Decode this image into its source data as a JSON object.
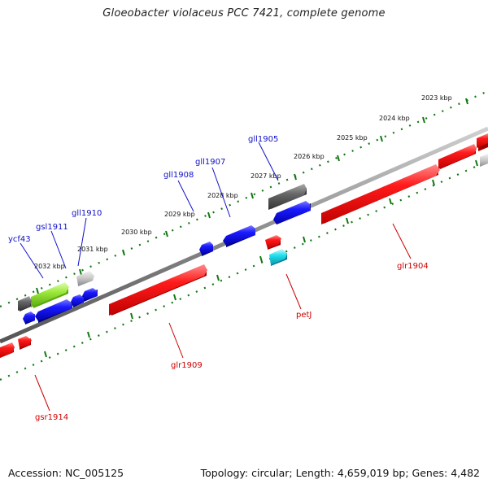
{
  "title": "Gloeobacter violaceus PCC 7421, complete genome",
  "footer": {
    "accession": "Accession: NC_005125",
    "summary": "Topology: circular; Length: 4,659,019 bp; Genes: 4,482"
  },
  "kbp_labels": [
    "2023 kbp",
    "2024 kbp",
    "2025 kbp",
    "2026 kbp",
    "2027 kbp",
    "2028 kbp",
    "2029 kbp",
    "2030 kbp",
    "2031 kbp",
    "2032 kbp"
  ],
  "gene_labels": {
    "ycf43": "ycf43",
    "gsl1911": "gsl1911",
    "gll1910": "gll1910",
    "gll1908": "gll1908",
    "gll1907": "gll1907",
    "gll1905": "gll1905",
    "glr1904": "glr1904",
    "petJ": "petJ",
    "glr1909": "glr1909",
    "gsr1914": "gsr1914"
  },
  "colors": {
    "forward_gene": "#ff0000",
    "reverse_gene": "#0000ee",
    "rna_gray": "#666666",
    "light_gray": "#c8c8c8",
    "lime": "#9be83a",
    "cyan": "#22e0ee",
    "tick_green": "#117711"
  }
}
